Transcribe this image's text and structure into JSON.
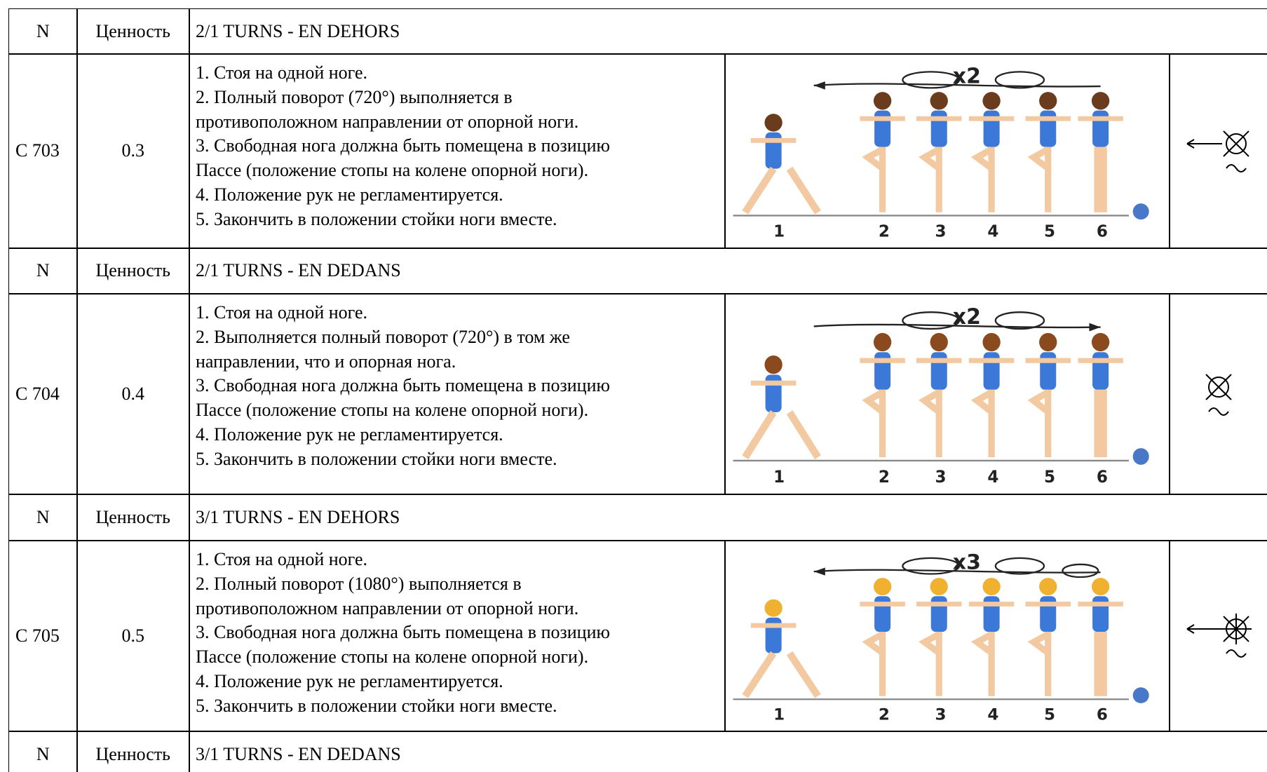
{
  "sections": [
    {
      "header": {
        "number": "N",
        "value": "Ценность",
        "title": "2/1 TURNS - EN DEHORS"
      },
      "element": {
        "code": "C 703",
        "value": "0.3",
        "description": [
          "1. Стоя на одной ноге.",
          "2. Полный поворот (720°) выполняется в",
          "противоположном направлении от опорной ноги.",
          "3. Свободная нога должна быть помещена в позицию",
          "Пассе (положение стопы на колене опорной ноги).",
          "4. Положение рук не регламентируется.",
          "5. Закончить в положении стойки ноги вместе."
        ],
        "illustration": {
          "multiplier": "x2",
          "labels": [
            1,
            2,
            3,
            4,
            5,
            6
          ]
        }
      }
    },
    {
      "header": {
        "number": "N",
        "value": "Ценность",
        "title": "2/1 TURNS - EN DEDANS"
      },
      "element": {
        "code": "C 704",
        "value": "0.4",
        "description": [
          "1. Стоя на одной ноге.",
          "2. Выполняется полный поворот (720°) в том же",
          "направлении, что и опорная нога.",
          "3. Свободная нога должна быть помещена в позицию",
          "Пассе (положение стопы на колене опорной ноги).",
          "4. Положение рук не регламентируется.",
          "5. Закончить в положении стойки ноги вместе."
        ],
        "illustration": {
          "multiplier": "x2",
          "labels": [
            1,
            2,
            3,
            4,
            5,
            6
          ]
        }
      }
    },
    {
      "header": {
        "number": "N",
        "value": "Ценность",
        "title": "3/1 TURNS - EN DEHORS"
      },
      "element": {
        "code": "C 705",
        "value": "0.5",
        "description": [
          "1. Стоя на одной ноге.",
          "2. Полный поворот (1080°) выполняется в",
          "противоположном направлении от опорной ноги.",
          "3. Свободная нога должна быть помещена в позицию",
          "Пассе (положение стопы на колене опорной ноги).",
          "4. Положение рук не регламентируется.",
          "5. Закончить в положении стойки ноги вместе."
        ],
        "illustration": {
          "multiplier": "x3",
          "labels": [
            1,
            2,
            3,
            4,
            5,
            6
          ]
        }
      }
    },
    {
      "header": {
        "number": "N",
        "value": "Ценность",
        "title": "3/1 TURNS - EN DEDANS"
      }
    }
  ]
}
